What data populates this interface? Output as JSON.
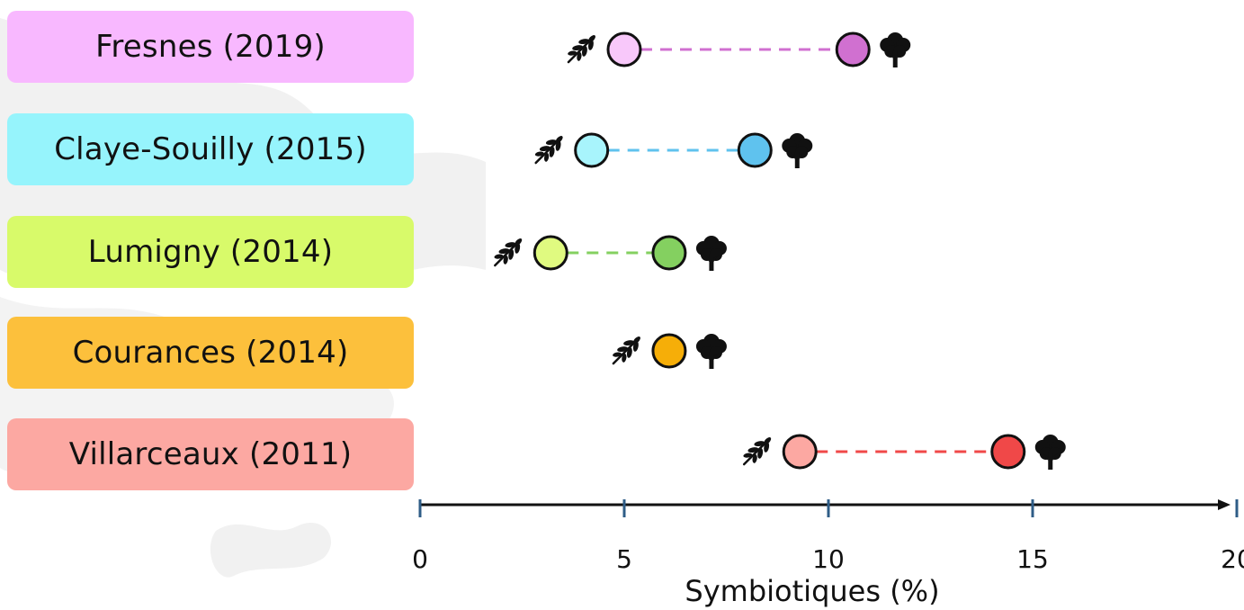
{
  "chart_data": {
    "type": "scatter",
    "subtype": "dumbbell",
    "xlabel": "Symbiotiques (%)",
    "xlim": [
      0,
      20
    ],
    "xticks": [
      0,
      5,
      10,
      15,
      20
    ],
    "grid": false,
    "marker_icons": {
      "first": "wheat-icon",
      "second": "tree-icon"
    },
    "categories": [
      "Fresnes (2019)",
      "Claye-Souilly (2015)",
      "Lumigny (2014)",
      "Courances (2014)",
      "Villarceaux (2011)"
    ],
    "rows": [
      {
        "label": "Fresnes (2019)",
        "low": 5.0,
        "high": 10.6,
        "label_color": "#f8b8ff",
        "low_color": "#f8c8fa",
        "high_color": "#d070d0",
        "line_color": "#d070d0"
      },
      {
        "label": "Claye-Souilly (2015)",
        "low": 4.2,
        "high": 8.2,
        "label_color": "#96f4fc",
        "low_color": "#a8f4fc",
        "high_color": "#5fc2ee",
        "line_color": "#5fc2ee"
      },
      {
        "label": "Lumigny (2014)",
        "low": 3.2,
        "high": 6.1,
        "label_color": "#d8fa6a",
        "low_color": "#e0fa80",
        "high_color": "#84d060",
        "line_color": "#84d060"
      },
      {
        "label": "Courances (2014)",
        "low": 6.1,
        "high": 6.1,
        "label_color": "#fcc03c",
        "low_color": "#f6ae08",
        "high_color": "#f6ae08",
        "line_color": "#f6ae08"
      },
      {
        "label": "Villarceaux (2011)",
        "low": 9.3,
        "high": 14.4,
        "label_color": "#fca8a2",
        "low_color": "#fca8a2",
        "high_color": "#f04848",
        "line_color": "#f04848"
      }
    ]
  }
}
